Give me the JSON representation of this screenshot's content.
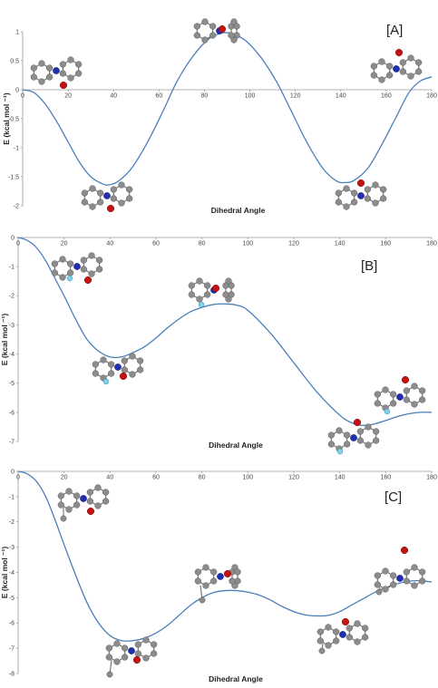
{
  "chart_data": [
    {
      "type": "line",
      "panel_label": "[A]",
      "xlabel": "Dihedral Angle",
      "ylabel": "E (kcal mol ⁻¹)",
      "xlim": [
        0,
        180
      ],
      "ylim": [
        -2,
        1
      ],
      "xticks": [
        0,
        20,
        40,
        60,
        80,
        100,
        120,
        140,
        160,
        180
      ],
      "yticks": [
        1,
        0.5,
        0,
        -0.5,
        -1,
        -1.5,
        -2
      ],
      "ytick_labels": [
        "1",
        "0.5",
        "0",
        "-0.5",
        "-1",
        "-1.5",
        "-2"
      ],
      "x_axis_at_y": 0,
      "series": [
        {
          "x": [
            0,
            5,
            10,
            15,
            20,
            25,
            30,
            35,
            38,
            42,
            48,
            55,
            62,
            68,
            75,
            82,
            88,
            90,
            92,
            98,
            105,
            112,
            118,
            125,
            132,
            138,
            142,
            146,
            152,
            158,
            164,
            170,
            175,
            180
          ],
          "y": [
            0,
            -0.05,
            -0.25,
            -0.55,
            -0.9,
            -1.25,
            -1.5,
            -1.62,
            -1.64,
            -1.58,
            -1.35,
            -0.9,
            -0.35,
            0.15,
            0.58,
            0.88,
            0.98,
            0.98,
            0.97,
            0.85,
            0.55,
            0.12,
            -0.35,
            -0.9,
            -1.35,
            -1.57,
            -1.6,
            -1.56,
            -1.35,
            -0.95,
            -0.5,
            -0.05,
            0.15,
            0.22
          ]
        }
      ]
    },
    {
      "type": "line",
      "panel_label": "[B]",
      "xlabel": "Dihedral Angle",
      "ylabel": "E (kcal mol ⁻¹)",
      "xlim": [
        0,
        180
      ],
      "ylim": [
        -7,
        0
      ],
      "xticks": [
        0,
        20,
        40,
        60,
        80,
        100,
        120,
        140,
        160,
        180
      ],
      "yticks": [
        0,
        -1,
        -2,
        -3,
        -4,
        -5,
        -6,
        -7
      ],
      "ytick_labels": [
        "0",
        "-1",
        "-2",
        "-3",
        "-4",
        "-5",
        "-6",
        "-7"
      ],
      "x_axis_at_y": 0,
      "series": [
        {
          "x": [
            0,
            4,
            8,
            12,
            16,
            20,
            25,
            30,
            35,
            40,
            45,
            50,
            55,
            60,
            65,
            70,
            75,
            80,
            85,
            90,
            95,
            100,
            110,
            120,
            130,
            140,
            145,
            150,
            155,
            160,
            165,
            170,
            175,
            180
          ],
          "y": [
            0,
            -0.1,
            -0.35,
            -0.8,
            -1.4,
            -2.0,
            -2.8,
            -3.5,
            -3.9,
            -4.1,
            -4.1,
            -3.95,
            -3.75,
            -3.45,
            -3.1,
            -2.8,
            -2.55,
            -2.4,
            -2.3,
            -2.28,
            -2.32,
            -2.5,
            -3.3,
            -4.3,
            -5.3,
            -6.1,
            -6.35,
            -6.45,
            -6.4,
            -6.28,
            -6.15,
            -6.05,
            -6.0,
            -6.0
          ]
        }
      ]
    },
    {
      "type": "line",
      "panel_label": "[C]",
      "xlabel": "Dihedral Angle",
      "ylabel": "E (kcal mol ⁻¹)",
      "xlim": [
        0,
        180
      ],
      "ylim": [
        -8,
        0
      ],
      "xticks": [
        0,
        20,
        40,
        60,
        80,
        100,
        120,
        140,
        160,
        180
      ],
      "yticks": [
        0,
        -1,
        -2,
        -3,
        -4,
        -5,
        -6,
        -7,
        -8
      ],
      "ytick_labels": [
        "0",
        "-1",
        "-2",
        "-3",
        "-4",
        "-5",
        "-6",
        "-7",
        "-8"
      ],
      "x_axis_at_y": 0,
      "series": [
        {
          "x": [
            0,
            4,
            8,
            12,
            16,
            20,
            25,
            30,
            35,
            40,
            45,
            50,
            55,
            60,
            65,
            70,
            75,
            80,
            85,
            90,
            95,
            100,
            105,
            110,
            115,
            120,
            125,
            130,
            135,
            140,
            145,
            150,
            155,
            160,
            165,
            170,
            175,
            180
          ],
          "y": [
            0,
            -0.1,
            -0.4,
            -1.0,
            -1.9,
            -2.9,
            -4.1,
            -5.2,
            -6.0,
            -6.5,
            -6.7,
            -6.7,
            -6.6,
            -6.4,
            -6.1,
            -5.7,
            -5.3,
            -5.0,
            -4.8,
            -4.72,
            -4.72,
            -4.78,
            -4.9,
            -5.1,
            -5.35,
            -5.55,
            -5.68,
            -5.72,
            -5.7,
            -5.55,
            -5.3,
            -5.05,
            -4.8,
            -4.6,
            -4.45,
            -4.35,
            -4.33,
            -4.38
          ]
        }
      ]
    }
  ],
  "colors": {
    "curve": "#4a7fb8",
    "carbon": "#8c8c8c",
    "nitrogen": "#1f2fb0",
    "oxygen": "#c41212",
    "fluorine": "#7fd3e8"
  },
  "molecule_icons": [
    "molecule-conformer-icon"
  ]
}
